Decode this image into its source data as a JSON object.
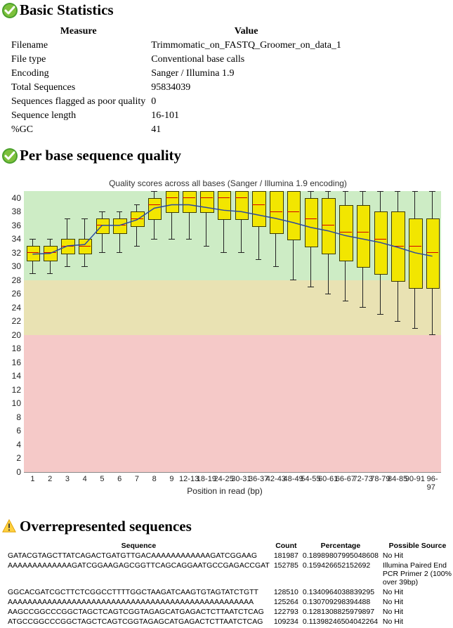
{
  "sections": {
    "basic_stats": {
      "title": "Basic Statistics",
      "status": "pass"
    },
    "per_base_quality": {
      "title": "Per base sequence quality",
      "status": "pass",
      "chart_title": "Quality scores across all bases (Sanger / Illumina 1.9 encoding)",
      "x_axis_title": "Position in read (bp)"
    },
    "overrep": {
      "title": "Overrepresented sequences",
      "status": "warn"
    }
  },
  "stats_table": {
    "headers": [
      "Measure",
      "Value"
    ],
    "rows": [
      [
        "Filename",
        "Trimmomatic_on_FASTQ_Groomer_on_data_1"
      ],
      [
        "File type",
        "Conventional base calls"
      ],
      [
        "Encoding",
        "Sanger / Illumina 1.9"
      ],
      [
        "Total Sequences",
        "95834039"
      ],
      [
        "Sequences flagged as poor quality",
        "0"
      ],
      [
        "Sequence length",
        "16-101"
      ],
      [
        "%GC",
        "41"
      ]
    ]
  },
  "chart": {
    "y_min": 0,
    "y_max": 41,
    "y_step": 2,
    "bands": [
      {
        "from": 0,
        "to": 20,
        "color": "#f5c9c8"
      },
      {
        "from": 20,
        "to": 28,
        "color": "#e9e2b3"
      },
      {
        "from": 28,
        "to": 41,
        "color": "#cdecc5"
      }
    ],
    "x_labels": [
      "1",
      "2",
      "3",
      "4",
      "5",
      "6",
      "7",
      "8",
      "9",
      "12-13",
      "18-19",
      "24-25",
      "30-31",
      "36-37",
      "42-43",
      "48-49",
      "54-55",
      "60-61",
      "66-67",
      "72-73",
      "78-79",
      "84-85",
      "90-91",
      "96-97"
    ],
    "boxes": [
      {
        "lw": 29,
        "q1": 31,
        "med": 32,
        "q3": 33,
        "uw": 34,
        "mean": 31.8
      },
      {
        "lw": 29,
        "q1": 31,
        "med": 32,
        "q3": 33,
        "uw": 34,
        "mean": 31.9
      },
      {
        "lw": 30,
        "q1": 32,
        "med": 33,
        "q3": 34,
        "uw": 37,
        "mean": 33.0
      },
      {
        "lw": 30,
        "q1": 32,
        "med": 33,
        "q3": 34,
        "uw": 37,
        "mean": 33.2
      },
      {
        "lw": 32,
        "q1": 35,
        "med": 36,
        "q3": 37,
        "uw": 38,
        "mean": 36.0
      },
      {
        "lw": 32,
        "q1": 35,
        "med": 36,
        "q3": 37,
        "uw": 38,
        "mean": 36.0
      },
      {
        "lw": 33,
        "q1": 36,
        "med": 37,
        "q3": 38,
        "uw": 39,
        "mean": 36.8
      },
      {
        "lw": 34,
        "q1": 37,
        "med": 39,
        "q3": 40,
        "uw": 41,
        "mean": 38.5
      },
      {
        "lw": 34,
        "q1": 38,
        "med": 40,
        "q3": 41,
        "uw": 41,
        "mean": 39.0
      },
      {
        "lw": 34,
        "q1": 38,
        "med": 40,
        "q3": 41,
        "uw": 41,
        "mean": 39.0
      },
      {
        "lw": 33,
        "q1": 38,
        "med": 40,
        "q3": 41,
        "uw": 41,
        "mean": 38.6
      },
      {
        "lw": 32,
        "q1": 37,
        "med": 40,
        "q3": 41,
        "uw": 41,
        "mean": 38.2
      },
      {
        "lw": 32,
        "q1": 37,
        "med": 40,
        "q3": 41,
        "uw": 41,
        "mean": 38.0
      },
      {
        "lw": 31,
        "q1": 36,
        "med": 39,
        "q3": 41,
        "uw": 41,
        "mean": 37.5
      },
      {
        "lw": 30,
        "q1": 35,
        "med": 38,
        "q3": 41,
        "uw": 41,
        "mean": 37.0
      },
      {
        "lw": 28,
        "q1": 34,
        "med": 38,
        "q3": 41,
        "uw": 41,
        "mean": 36.4
      },
      {
        "lw": 27,
        "q1": 33,
        "med": 37,
        "q3": 40,
        "uw": 41,
        "mean": 35.7
      },
      {
        "lw": 26,
        "q1": 32,
        "med": 36,
        "q3": 40,
        "uw": 41,
        "mean": 35.2
      },
      {
        "lw": 25,
        "q1": 31,
        "med": 35,
        "q3": 39,
        "uw": 41,
        "mean": 34.5
      },
      {
        "lw": 24,
        "q1": 30,
        "med": 35,
        "q3": 39,
        "uw": 41,
        "mean": 34.0
      },
      {
        "lw": 23,
        "q1": 29,
        "med": 34,
        "q3": 38,
        "uw": 41,
        "mean": 33.5
      },
      {
        "lw": 22,
        "q1": 28,
        "med": 33,
        "q3": 38,
        "uw": 41,
        "mean": 32.8
      },
      {
        "lw": 21,
        "q1": 27,
        "med": 33,
        "q3": 37,
        "uw": 41,
        "mean": 32.0
      },
      {
        "lw": 20,
        "q1": 27,
        "med": 32,
        "q3": 37,
        "uw": 41,
        "mean": 31.5
      }
    ],
    "box_color": "#f2e600",
    "box_border": "#3a3a00",
    "median_color": "#d10000",
    "mean_line_color": "#2b4aa0",
    "grid_color": "#888888"
  },
  "seqs_table": {
    "headers": [
      "Sequence",
      "Count",
      "Percentage",
      "Possible Source"
    ],
    "rows": [
      [
        "GATACGTAGCTTATCAGACTGATGTTGACAAAAAAAAAAAAGATCGGAAG",
        "181987",
        "0.18989807995048608",
        "No Hit"
      ],
      [
        "AAAAAAAAAAAAAGATCGGAAGAGCGGTTCAGCAGGAATGCCGAGACCGAT",
        "152785",
        "0.159426652152692",
        "Illumina Paired End PCR Primer 2 (100% over 39bp)"
      ],
      [
        "GGCACGATCGCTTCTCGGCCTTTTGGCTAAGATCAAGTGTAGTATCTGTT",
        "128510",
        "0.1340964038839295",
        "No Hit"
      ],
      [
        "AAAAAAAAAAAAAAAAAAAAAAAAAAAAAAAAAAAAAAAAAAAAAAAAAA",
        "125264",
        "0.130709298394488",
        "No Hit"
      ],
      [
        "AAGCCGGCCCGGCTAGCTCAGTCGGTAGAGCATGAGACTCTTAATCTCAG",
        "122793",
        "0.1281308825979897",
        "No Hit"
      ],
      [
        "ATGCCGGCCCGGCTAGCTCAGTCGGTAGAGCATGAGACTCTTAATCTCAG",
        "109234",
        "0.11398246504042264",
        "No Hit"
      ]
    ]
  },
  "icons": {
    "pass_color_outer": "#4aa02c",
    "pass_color_inner": "#7dc03c",
    "warn_color_outer": "#e0a000",
    "warn_color_inner": "#ffd040"
  }
}
